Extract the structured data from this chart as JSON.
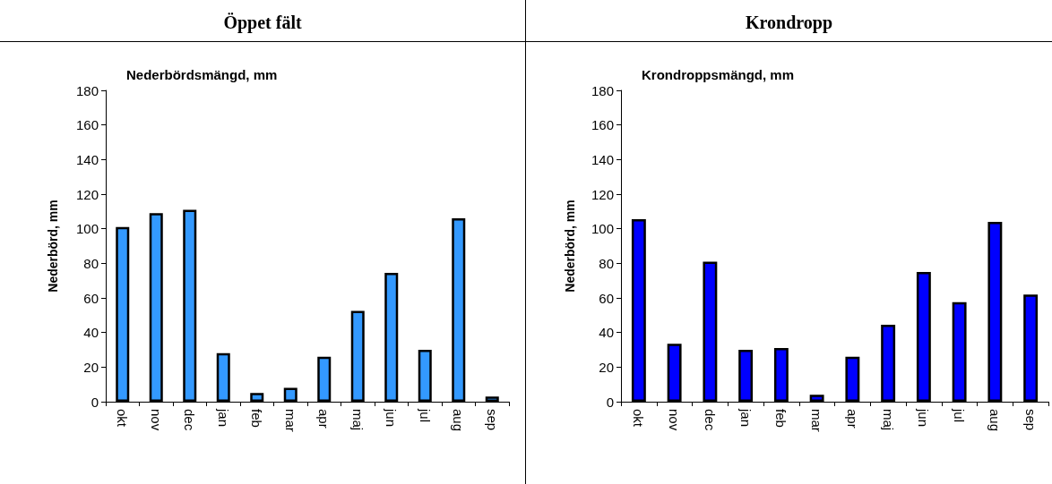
{
  "chart_data": [
    {
      "type": "bar",
      "title": "Öppet fält",
      "subtitle": "Nederbördsmängd, mm",
      "ylabel": "Nederbörd, mm",
      "categories": [
        "okt",
        "nov",
        "dec",
        "jan",
        "feb",
        "mar",
        "apr",
        "maj",
        "jun",
        "jul",
        "aug",
        "sep"
      ],
      "values": [
        101,
        109,
        111,
        28,
        5,
        8,
        26,
        52.5,
        74.5,
        30,
        106,
        3
      ],
      "color": "#3399ff",
      "ylim": [
        0,
        180
      ],
      "yticks": [
        0,
        20,
        40,
        60,
        80,
        100,
        120,
        140,
        160,
        180
      ],
      "grid": false
    },
    {
      "type": "bar",
      "title": "Krondropp",
      "subtitle": "Krondroppsmängd, mm",
      "ylabel": "Nederbörd, mm",
      "categories": [
        "okt",
        "nov",
        "dec",
        "jan",
        "feb",
        "mar",
        "apr",
        "maj",
        "jun",
        "jul",
        "aug",
        "sep"
      ],
      "values": [
        105.5,
        33.5,
        81,
        30,
        31,
        4,
        26,
        44.5,
        75,
        57.5,
        104,
        62
      ],
      "color": "#0000ff",
      "ylim": [
        0,
        180
      ],
      "yticks": [
        0,
        20,
        40,
        60,
        80,
        100,
        120,
        140,
        160,
        180
      ],
      "grid": false
    }
  ]
}
